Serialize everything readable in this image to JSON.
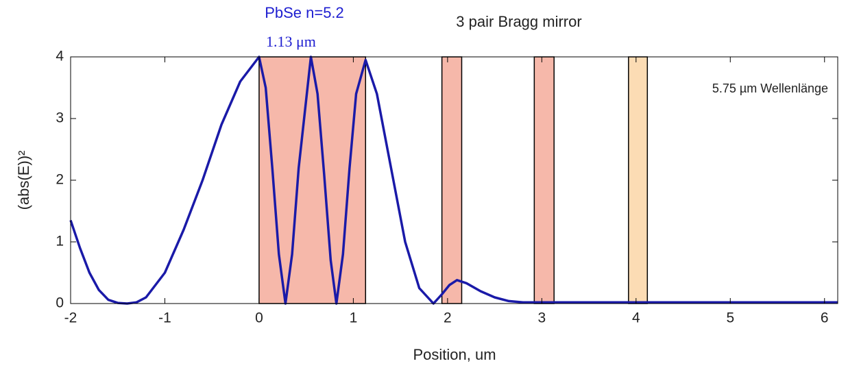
{
  "chart_data": {
    "type": "line",
    "xlabel": "Position, um",
    "ylabel": "(abs(E))²",
    "xlim": [
      -2,
      6.14
    ],
    "ylim": [
      0,
      4
    ],
    "xticks": [
      -2,
      -1,
      0,
      1,
      2,
      3,
      4,
      5,
      6
    ],
    "yticks": [
      0,
      1,
      2,
      3,
      4
    ],
    "grid": false,
    "annotations": [
      "PbSe n=5.2",
      "1.13 μm",
      "3 pair Bragg mirror",
      "5.75 µm Wellenlänge"
    ],
    "regions": [
      {
        "start": 0,
        "end": 1.13,
        "color": "#f6b8aa"
      },
      {
        "start": 1.94,
        "end": 2.15,
        "color": "#f6b8aa"
      },
      {
        "start": 2.92,
        "end": 3.13,
        "color": "#f6b8aa"
      },
      {
        "start": 3.92,
        "end": 4.12,
        "color": "#fcdcb4"
      }
    ],
    "series": [
      {
        "color": "#1a1aa8",
        "x": [
          -2,
          -1.9,
          -1.8,
          -1.7,
          -1.6,
          -1.5,
          -1.4,
          -1.3,
          -1.2,
          -1.0,
          -0.8,
          -0.6,
          -0.4,
          -0.2,
          0,
          0.07,
          0.14,
          0.21,
          0.28,
          0.35,
          0.42,
          0.55,
          0.62,
          0.69,
          0.76,
          0.82,
          0.89,
          0.96,
          1.03,
          1.13,
          1.25,
          1.4,
          1.55,
          1.7,
          1.85,
          1.94,
          2.02,
          2.1,
          2.2,
          2.35,
          2.5,
          2.65,
          2.8,
          3.0,
          3.5,
          4,
          4.5,
          5,
          5.5,
          6,
          6.14
        ],
        "values": [
          1.35,
          0.9,
          0.5,
          0.22,
          0.06,
          0.01,
          0,
          0.02,
          0.1,
          0.5,
          1.2,
          2.0,
          2.9,
          3.6,
          4,
          3.5,
          2.2,
          0.8,
          0,
          0.8,
          2.2,
          4,
          3.4,
          2.1,
          0.7,
          0,
          0.8,
          2.2,
          3.4,
          3.95,
          3.4,
          2.2,
          1.0,
          0.25,
          0,
          0.15,
          0.3,
          0.38,
          0.33,
          0.2,
          0.1,
          0.04,
          0.02,
          0.02,
          0.02,
          0.02,
          0.02,
          0.02,
          0.02,
          0.02,
          0.02
        ]
      }
    ]
  }
}
